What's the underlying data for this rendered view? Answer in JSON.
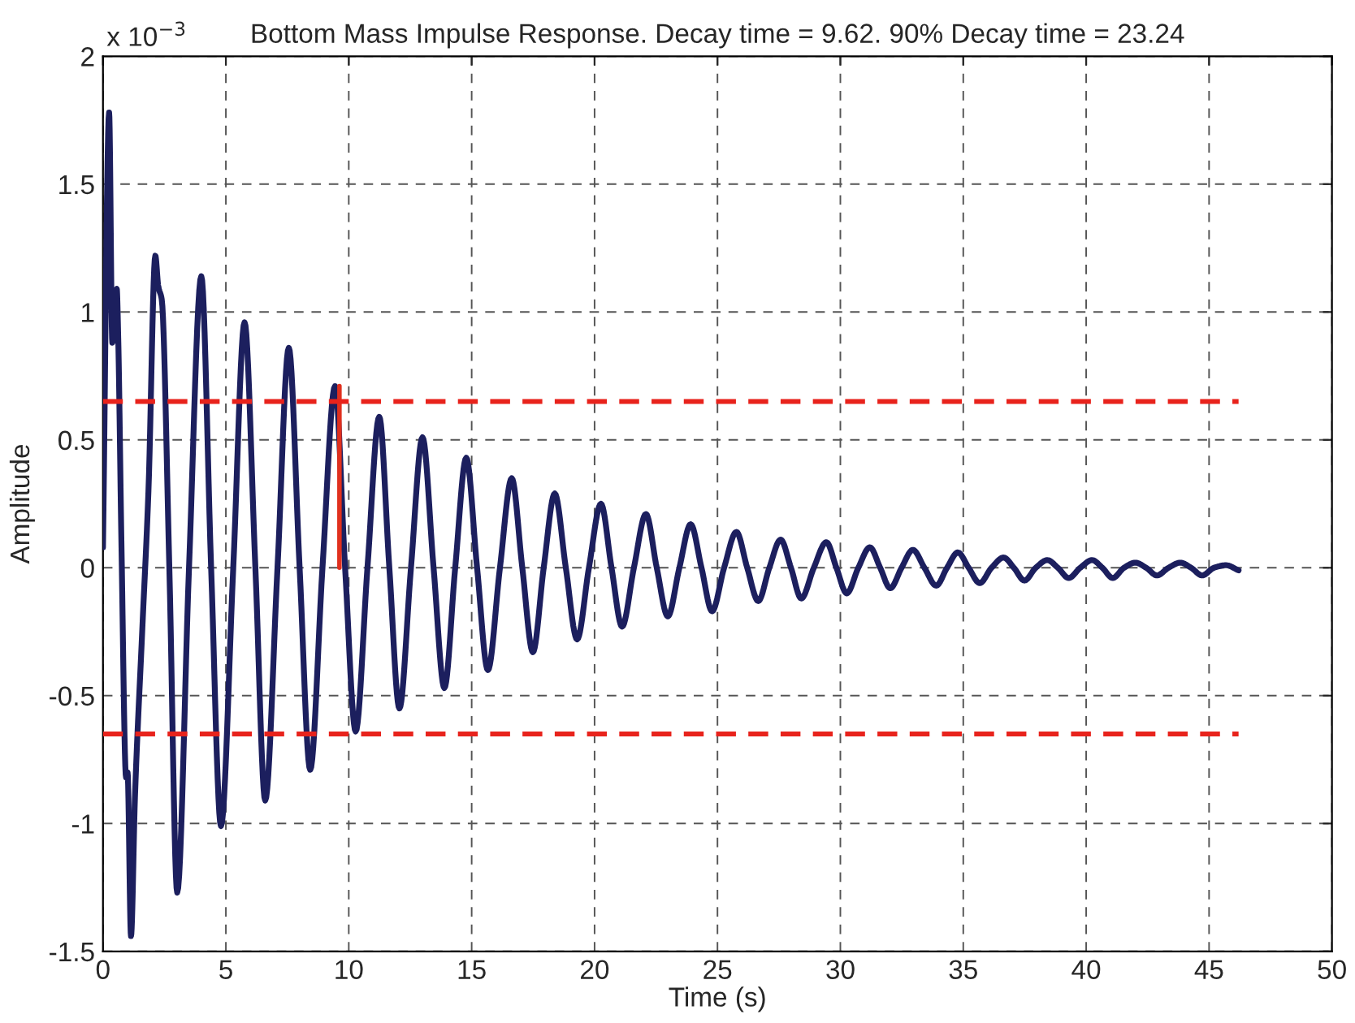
{
  "chart_data": {
    "type": "line",
    "title": "Bottom Mass Impulse Response. Decay time = 9.62. 90% Decay time = 23.24",
    "xlabel": "Time (s)",
    "ylabel": "Amplitude",
    "annotations": [
      "x 10$^{−3}$"
    ],
    "xlim": [
      0,
      50
    ],
    "xticks": [
      0,
      5,
      10,
      15,
      20,
      25,
      30,
      35,
      40,
      45,
      50
    ],
    "ylim": [
      -1.5,
      2
    ],
    "yticks": [
      -1.5,
      -1,
      -0.5,
      0,
      0.5,
      1,
      1.5,
      2
    ],
    "grid": true,
    "series": [
      {
        "color": "#1c1f5e",
        "x": [
          0,
          0.25,
          0.38,
          0.5,
          0.56,
          0.62,
          0.75,
          0.94,
          1.0,
          1.14,
          1.3,
          1.6,
          1.85,
          2.13,
          2.25,
          2.39,
          2.7,
          3.02,
          3.5,
          4.0,
          4.4,
          4.8,
          5.3,
          5.76,
          6.2,
          6.6,
          7.1,
          7.56,
          8.0,
          8.43,
          8.93,
          9.44,
          9.85,
          10.28,
          10.76,
          11.24,
          11.65,
          12.06,
          12.53,
          13.0,
          13.45,
          13.89,
          14.33,
          14.78,
          15.22,
          15.66,
          16.15,
          16.63,
          17.06,
          17.49,
          17.93,
          18.38,
          18.83,
          19.29,
          19.77,
          20.26,
          20.69,
          21.12,
          21.6,
          22.09,
          22.53,
          22.98,
          23.45,
          23.91,
          24.35,
          24.78,
          25.27,
          25.77,
          26.21,
          26.66,
          27.11,
          27.57,
          27.99,
          28.41,
          28.92,
          29.43,
          29.84,
          30.26,
          30.73,
          31.2,
          31.62,
          32.03,
          32.49,
          32.95,
          33.42,
          33.9,
          34.34,
          34.78,
          35.22,
          35.67,
          36.15,
          36.64,
          37.06,
          37.49,
          37.95,
          38.42,
          38.85,
          39.29,
          39.76,
          40.24,
          40.66,
          41.08,
          41.54,
          42.0,
          42.44,
          42.88,
          43.35,
          43.83,
          44.27,
          44.72,
          45.2,
          45.69,
          46.2
        ],
        "values": [
          0.08,
          1.78,
          0.88,
          1.05,
          1.09,
          0.9,
          0.1,
          -0.82,
          -0.8,
          -1.44,
          -0.9,
          -0.24,
          0.3,
          1.22,
          1.1,
          1.05,
          0,
          -1.27,
          0,
          1.14,
          0,
          -1.01,
          0,
          0.96,
          0,
          -0.91,
          0,
          0.86,
          0,
          -0.79,
          0,
          0.71,
          0,
          -0.64,
          0,
          0.59,
          0,
          -0.55,
          0,
          0.51,
          0,
          -0.47,
          0,
          0.43,
          0,
          -0.4,
          0,
          0.35,
          0,
          -0.33,
          0,
          0.29,
          0,
          -0.28,
          0,
          0.25,
          0,
          -0.23,
          0,
          0.21,
          0,
          -0.19,
          0,
          0.17,
          0,
          -0.17,
          0,
          0.14,
          0,
          -0.13,
          0,
          0.11,
          0,
          -0.12,
          0,
          0.1,
          0,
          -0.1,
          0,
          0.08,
          0,
          -0.08,
          0,
          0.07,
          0,
          -0.07,
          0,
          0.06,
          0,
          -0.06,
          0,
          0.04,
          0,
          -0.05,
          0,
          0.03,
          0,
          -0.04,
          0,
          0.03,
          0,
          -0.04,
          0,
          0.02,
          0,
          -0.03,
          0,
          0.02,
          0,
          -0.03,
          0,
          0.01,
          -0.01
        ]
      },
      {
        "color": "#e0301e",
        "x": [
          9.62,
          9.62
        ],
        "values": [
          0,
          0.71
        ]
      }
    ],
    "ref_lines": [
      {
        "axis": "y",
        "value": 0.65,
        "color": "#e8231c",
        "line_style": "dashed"
      },
      {
        "axis": "y",
        "value": -0.65,
        "color": "#e8231c",
        "line_style": "dashed"
      }
    ]
  }
}
